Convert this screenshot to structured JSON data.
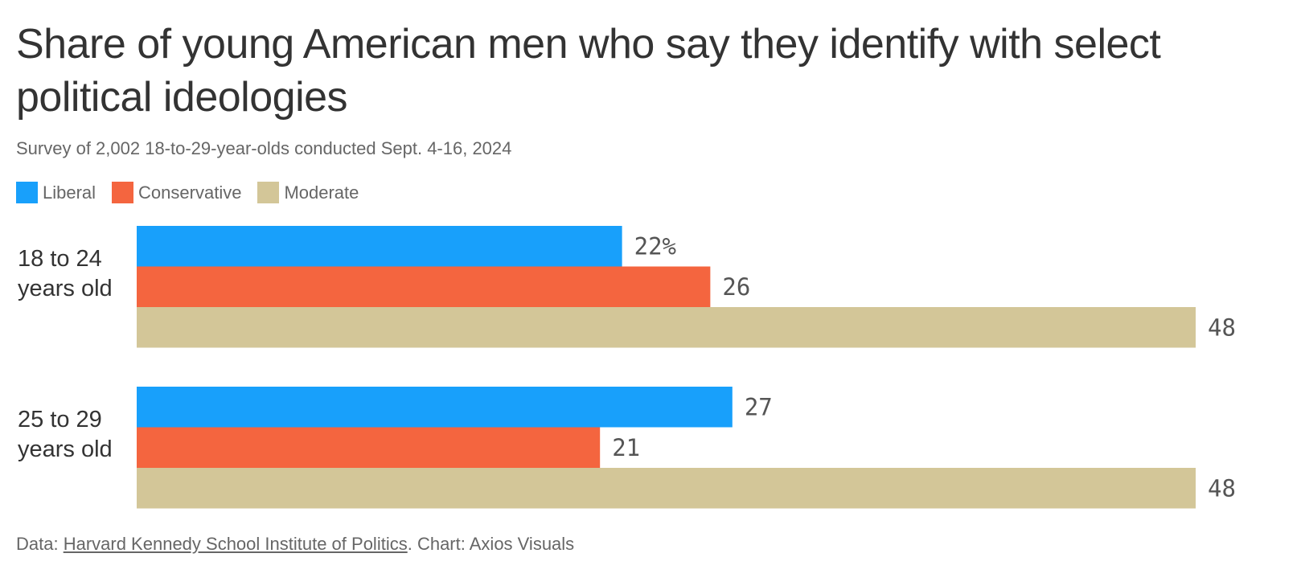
{
  "chart_data": {
    "type": "bar",
    "orientation": "horizontal",
    "title": "Share of young American men who say they identify with select political ideologies",
    "subtitle": "Survey of 2,002 18-to-29-year-olds conducted Sept. 4-16, 2024",
    "categories": [
      {
        "line1": "18 to 24",
        "line2": "years old"
      },
      {
        "line1": "25 to 29",
        "line2": "years old"
      }
    ],
    "series": [
      {
        "name": "Liberal",
        "color": "#18a0fb",
        "values": [
          22,
          27
        ],
        "labels": [
          "22%",
          "27"
        ]
      },
      {
        "name": "Conservative",
        "color": "#f4653f",
        "values": [
          26,
          21
        ],
        "labels": [
          "26",
          "21"
        ]
      },
      {
        "name": "Moderate",
        "color": "#d3c698",
        "values": [
          48,
          48
        ],
        "labels": [
          "48",
          "48"
        ]
      }
    ],
    "xlim": [
      0,
      48
    ],
    "unit": "%",
    "grid": false,
    "legend_position": "top-left"
  },
  "footer": {
    "prefix": "Data: ",
    "source_link": "Harvard Kennedy School Institute of Politics",
    "suffix": ". Chart: Axios Visuals"
  }
}
